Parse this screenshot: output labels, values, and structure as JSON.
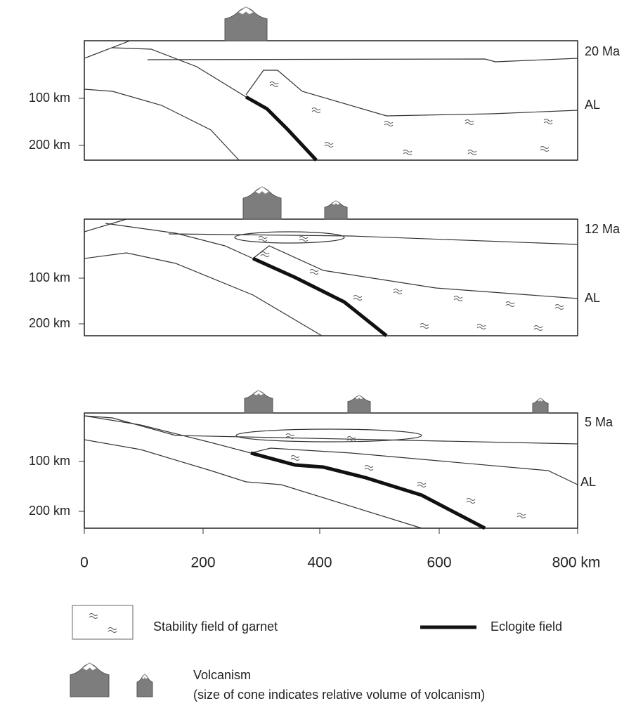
{
  "panels": [
    {
      "age": "20 Ma",
      "label": "AL",
      "depth_labels": [
        "100 km",
        "200 km"
      ]
    },
    {
      "age": "12 Ma",
      "label": "AL",
      "depth_labels": [
        "100 km",
        "200 km"
      ]
    },
    {
      "age": "5 Ma",
      "label": "AL",
      "depth_labels": [
        "100 km",
        "200 km"
      ]
    }
  ],
  "x_axis": {
    "labels": [
      "0",
      "200",
      "400",
      "600",
      "800 km"
    ]
  },
  "legend": {
    "garnet": "Stability field of garnet",
    "eclogite": "Eclogite field",
    "volcanism": "Volcanism",
    "volcanism_note": "(size of cone indicates relative volume of volcanism)"
  }
}
